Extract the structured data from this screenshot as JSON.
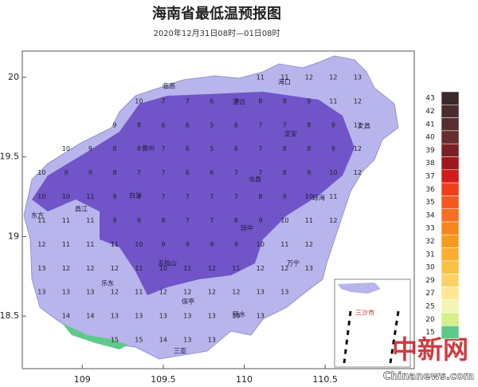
{
  "title": "海南省最低温预报图",
  "subtitle": "2020年12月31日08时—01日08时",
  "axes": {
    "xlim": [
      108.63,
      111.05
    ],
    "ylim": [
      18.17,
      20.165
    ],
    "xticks": [
      109,
      109.5,
      110,
      110.5
    ],
    "yticks": [
      18.5,
      19,
      19.5,
      20
    ]
  },
  "legend": {
    "labels": [
      43,
      42,
      41,
      40,
      39,
      38,
      37,
      36,
      35,
      34,
      33,
      32,
      31,
      30,
      29,
      27,
      25,
      20,
      15
    ],
    "colors": [
      "#3b2a2c",
      "#482c2e",
      "#572e30",
      "#662c2e",
      "#7a2024",
      "#a0161a",
      "#d21c1c",
      "#ef3f1c",
      "#f3581e",
      "#f66f20",
      "#f7881e",
      "#f99b22",
      "#faae30",
      "#fbc042",
      "#fcd264",
      "#fde792",
      "#f2f6b2",
      "#d6ef8a",
      "#5ec98a"
    ]
  },
  "grid": {
    "lons": [
      108.75,
      108.9,
      109.05,
      109.2,
      109.35,
      109.5,
      109.65,
      109.8,
      109.95,
      110.1,
      110.25,
      110.4,
      110.55,
      110.7
    ],
    "lats": [
      20.0,
      19.85,
      19.7,
      19.55,
      19.4,
      19.25,
      19.1,
      18.95,
      18.8,
      18.65,
      18.5,
      18.35
    ],
    "values": [
      [
        null,
        null,
        null,
        null,
        null,
        null,
        null,
        null,
        null,
        11,
        11,
        12,
        12,
        13
      ],
      [
        null,
        null,
        null,
        null,
        10,
        7,
        7,
        6,
        7,
        8,
        8,
        9,
        11,
        12
      ],
      [
        null,
        null,
        null,
        9,
        8,
        6,
        6,
        5,
        6,
        7,
        7,
        8,
        9,
        12
      ],
      [
        null,
        10,
        9,
        8,
        8,
        7,
        6,
        5,
        6,
        7,
        8,
        8,
        9,
        12
      ],
      [
        10,
        9,
        9,
        8,
        7,
        7,
        6,
        6,
        7,
        7,
        8,
        9,
        10,
        12
      ],
      [
        10,
        10,
        11,
        9,
        8,
        7,
        7,
        7,
        7,
        8,
        9,
        10,
        11,
        null
      ],
      [
        11,
        11,
        11,
        9,
        9,
        8,
        7,
        7,
        8,
        9,
        10,
        11,
        12,
        null
      ],
      [
        12,
        11,
        11,
        11,
        10,
        9,
        9,
        9,
        9,
        10,
        11,
        12,
        null,
        null
      ],
      [
        13,
        12,
        12,
        12,
        11,
        10,
        11,
        12,
        11,
        12,
        12,
        13,
        null,
        null
      ],
      [
        13,
        13,
        13,
        12,
        11,
        12,
        12,
        12,
        12,
        13,
        13,
        null,
        null,
        null
      ],
      [
        null,
        14,
        14,
        13,
        13,
        13,
        13,
        13,
        13,
        13,
        null,
        null,
        null,
        null
      ],
      [
        null,
        null,
        null,
        15,
        15,
        14,
        13,
        13,
        null,
        null,
        null,
        null,
        null,
        null
      ]
    ]
  },
  "cities": [
    "临高",
    "澄迈",
    "海口",
    "文昌",
    "儋州",
    "定安",
    "屯昌",
    "白沙",
    "琼海",
    "东方",
    "昌江",
    "琼中",
    "五指山",
    "万宁",
    "乐东",
    "保亭",
    "陵水",
    "三亚"
  ],
  "inset_label": "三沙市",
  "watermark": {
    "logo": "中新网",
    "site": "Chinanews.com"
  }
}
